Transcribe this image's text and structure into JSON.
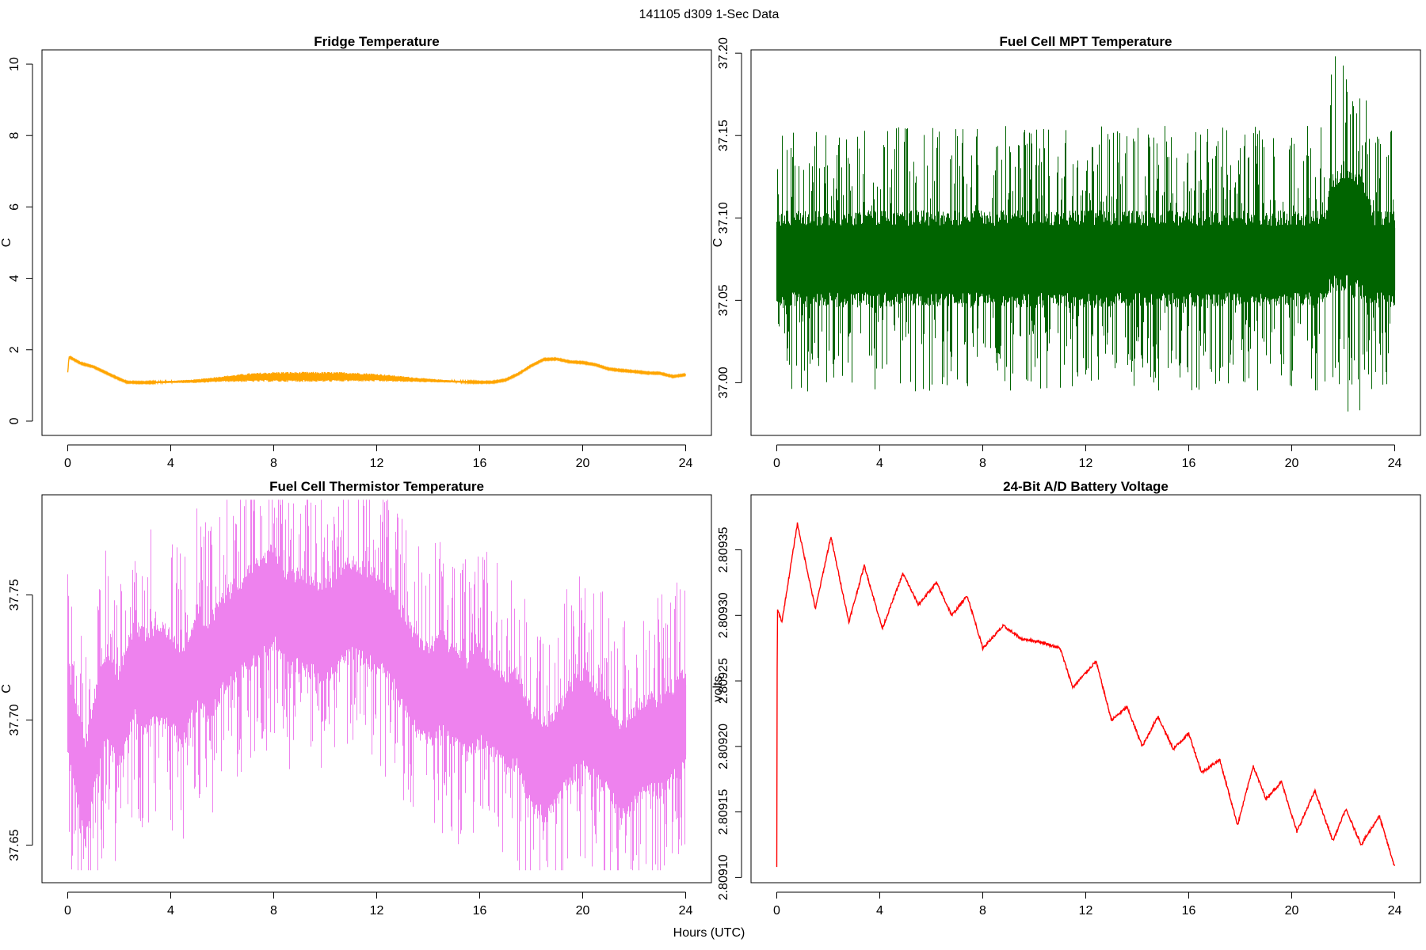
{
  "suptitle": "141105   d309   1-Sec Data",
  "xlabel": "Hours (UTC)",
  "chart_data": [
    {
      "type": "line",
      "title": "Fridge Temperature",
      "xlabel": "",
      "ylabel": "C",
      "color": "#ffa500",
      "xlim": [
        -1,
        25
      ],
      "ylim": [
        -0.4,
        10.4
      ],
      "xticks": [
        0,
        4,
        8,
        12,
        16,
        20,
        24
      ],
      "yticks": [
        0,
        2,
        4,
        6,
        8,
        10
      ],
      "ytick_labels": [
        "0",
        "2",
        "4",
        "6",
        "8",
        "10"
      ],
      "series": [
        {
          "x": [
            0,
            0.05,
            0.5,
            1,
            1.5,
            2,
            2.3,
            3,
            4,
            5,
            6,
            7,
            8,
            9,
            10,
            11,
            12,
            13,
            14,
            15,
            16,
            16.5,
            17,
            17.5,
            18,
            18.5,
            19,
            19.5,
            20,
            20.5,
            21,
            21.5,
            22,
            22.5,
            23,
            23.5,
            24
          ],
          "y": [
            1.35,
            1.8,
            1.62,
            1.52,
            1.35,
            1.18,
            1.09,
            1.08,
            1.1,
            1.12,
            1.18,
            1.22,
            1.24,
            1.24,
            1.24,
            1.24,
            1.22,
            1.18,
            1.14,
            1.11,
            1.09,
            1.09,
            1.15,
            1.32,
            1.55,
            1.73,
            1.74,
            1.66,
            1.64,
            1.58,
            1.46,
            1.42,
            1.39,
            1.35,
            1.34,
            1.25,
            1.3
          ],
          "noise_amp": [
            0.02,
            0.02,
            0.02,
            0.02,
            0.02,
            0.02,
            0.02,
            0.02,
            0.03,
            0.05,
            0.08,
            0.12,
            0.14,
            0.14,
            0.14,
            0.13,
            0.11,
            0.08,
            0.05,
            0.03,
            0.02,
            0.02,
            0.02,
            0.02,
            0.02,
            0.02,
            0.02,
            0.02,
            0.02,
            0.02,
            0.02,
            0.02,
            0.02,
            0.02,
            0.02,
            0.02,
            0.02
          ]
        }
      ]
    },
    {
      "type": "line",
      "title": "Fuel Cell MPT Temperature",
      "xlabel": "",
      "ylabel": "C",
      "color": "#006400",
      "xlim": [
        -1,
        25
      ],
      "ylim": [
        36.968,
        37.202
      ],
      "xticks": [
        0,
        4,
        8,
        12,
        16,
        20,
        24
      ],
      "yticks": [
        37.0,
        37.05,
        37.1,
        37.15,
        37.2
      ],
      "ytick_labels": [
        "37.00",
        "37.05",
        "37.10",
        "37.15",
        "37.20"
      ],
      "series": [
        {
          "x": [
            0,
            4,
            8,
            12,
            16,
            20,
            21.3,
            21.5,
            22,
            22.5,
            22.9,
            23.2,
            24
          ],
          "y": [
            37.075,
            37.075,
            37.075,
            37.075,
            37.075,
            37.075,
            37.075,
            37.09,
            37.095,
            37.09,
            37.085,
            37.075,
            37.075
          ],
          "band": [
            0.027,
            0.027,
            0.027,
            0.027,
            0.027,
            0.027,
            0.027,
            0.034,
            0.038,
            0.036,
            0.034,
            0.027,
            0.027
          ],
          "spike_high": 37.198,
          "spike_low": 36.971
        }
      ]
    },
    {
      "type": "line",
      "title": "Fuel Cell Thermistor Temperature",
      "xlabel": "",
      "ylabel": "C",
      "color": "#ee82ee",
      "xlim": [
        -1,
        25
      ],
      "ylim": [
        37.635,
        37.79
      ],
      "xticks": [
        0,
        4,
        8,
        12,
        16,
        20,
        24
      ],
      "yticks": [
        37.65,
        37.7,
        37.75
      ],
      "ytick_labels": [
        "37.65",
        "37.70",
        "37.75"
      ],
      "series": [
        {
          "x": [
            0,
            0.4,
            0.7,
            1.0,
            1.5,
            2.0,
            2.6,
            3.0,
            3.5,
            4.0,
            4.5,
            5.0,
            5.5,
            6.0,
            6.5,
            7.0,
            7.5,
            8.0,
            8.5,
            9.0,
            10.0,
            11.0,
            12.0,
            12.5,
            13.0,
            13.5,
            14.0,
            14.5,
            15.0,
            15.5,
            16.0,
            16.5,
            17.0,
            17.5,
            18.0,
            18.5,
            19.0,
            19.5,
            20.0,
            20.5,
            21.0,
            21.5,
            22.0,
            22.5,
            23.0,
            23.5,
            24.0
          ],
          "y": [
            37.705,
            37.685,
            37.67,
            37.69,
            37.71,
            37.7,
            37.72,
            37.715,
            37.72,
            37.715,
            37.71,
            37.725,
            37.72,
            37.73,
            37.735,
            37.74,
            37.745,
            37.75,
            37.74,
            37.74,
            37.735,
            37.745,
            37.74,
            37.735,
            37.725,
            37.715,
            37.71,
            37.715,
            37.71,
            37.705,
            37.71,
            37.705,
            37.7,
            37.7,
            37.685,
            37.68,
            37.685,
            37.695,
            37.7,
            37.695,
            37.69,
            37.68,
            37.685,
            37.69,
            37.69,
            37.695,
            37.7
          ],
          "band": 0.02,
          "spike_high": 37.788,
          "spike_low": 37.64
        }
      ]
    },
    {
      "type": "line",
      "title": "24-Bit A/D Battery Voltage",
      "xlabel": "",
      "ylabel": "volts",
      "color": "#ff0000",
      "xlim": [
        -1,
        25
      ],
      "ylim": [
        2.809096,
        2.809392
      ],
      "xticks": [
        0,
        4,
        8,
        12,
        16,
        20,
        24
      ],
      "yticks": [
        2.8091,
        2.80915,
        2.8092,
        2.80925,
        2.8093,
        2.80935
      ],
      "ytick_labels": [
        "2.80910",
        "2.80915",
        "2.80920",
        "2.80925",
        "2.80930",
        "2.80935"
      ],
      "series": [
        {
          "x": [
            0,
            0.02,
            0.2,
            0.8,
            1.5,
            2.1,
            2.8,
            3.4,
            4.1,
            4.9,
            5.5,
            6.2,
            6.8,
            7.4,
            8.0,
            8.8,
            9.5,
            10.2,
            11.0,
            11.5,
            12.4,
            13.0,
            13.6,
            14.2,
            14.8,
            15.4,
            16.0,
            16.5,
            17.2,
            17.9,
            18.5,
            19.0,
            19.6,
            20.2,
            20.9,
            21.6,
            22.1,
            22.7,
            23.4,
            24.0
          ],
          "y": [
            2.809108,
            2.809305,
            2.809295,
            2.80937,
            2.809305,
            2.80936,
            2.809295,
            2.809338,
            2.80929,
            2.809332,
            2.809308,
            2.809325,
            2.8093,
            2.809315,
            2.809275,
            2.809292,
            2.809282,
            2.80928,
            2.809275,
            2.809245,
            2.809265,
            2.80922,
            2.80923,
            2.8092,
            2.809223,
            2.809198,
            2.80921,
            2.80918,
            2.80919,
            2.80914,
            2.809185,
            2.80916,
            2.809173,
            2.809135,
            2.809166,
            2.809128,
            2.809152,
            2.809125,
            2.809147,
            2.809108
          ]
        }
      ]
    }
  ]
}
